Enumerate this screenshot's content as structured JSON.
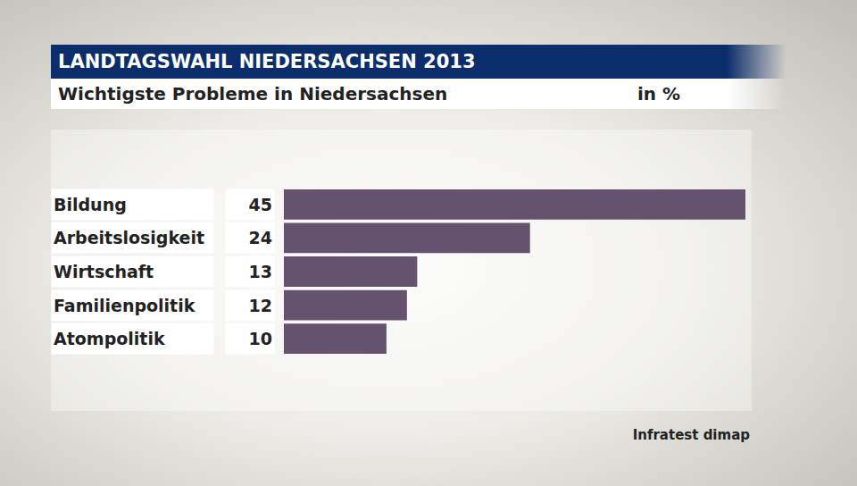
{
  "chart_data": {
    "type": "bar",
    "orientation": "horizontal",
    "title": "LANDTAGSWAHL NIEDERSACHSEN 2013",
    "subtitle": "Wichtigste Probleme in Niedersachsen",
    "unit": "in %",
    "source": "Infratest dimap",
    "categories": [
      "Bildung",
      "Arbeitslosigkeit",
      "Wirtschaft",
      "Familienpolitik",
      "Atompolitik"
    ],
    "values": [
      45,
      24,
      13,
      12,
      10
    ],
    "color": "#65526f",
    "xlim": [
      0,
      45
    ],
    "data_labels": true,
    "tick_labels": false,
    "grid": false
  }
}
